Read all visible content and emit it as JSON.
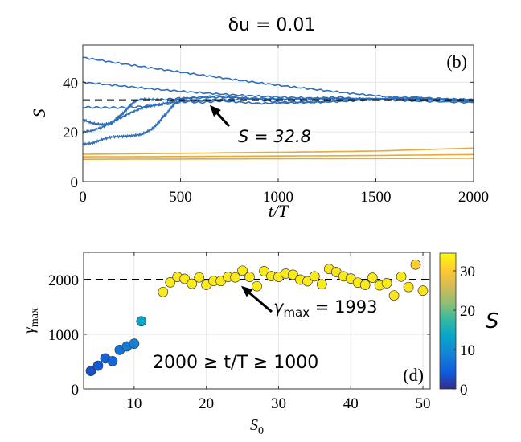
{
  "figure_title": "δu = 0.01",
  "chart_data": [
    {
      "id": "b",
      "type": "line",
      "panel_label": "(b)",
      "title": "δu = 0.01",
      "xlabel": "t/T",
      "ylabel": "S",
      "xlim": [
        0,
        2000
      ],
      "ylim": [
        0,
        55
      ],
      "xticks": [
        0,
        500,
        1000,
        1500,
        2000
      ],
      "yticks": [
        0,
        20,
        40
      ],
      "grid": true,
      "reference_line": {
        "y": 32.8,
        "style": "dashed",
        "color": "#000000"
      },
      "annotation": {
        "text": "S = 32.8",
        "points_to": [
          650,
          31.8
        ]
      },
      "series": [
        {
          "name": "S0=50",
          "color": "#2f6fb9",
          "x": [
            0,
            200,
            400,
            600,
            800,
            1000,
            1200,
            1400,
            1600,
            1800,
            2000
          ],
          "y": [
            50,
            47.5,
            45.2,
            43,
            40.8,
            38.8,
            37,
            35.3,
            34,
            33.4,
            33
          ]
        },
        {
          "name": "S0=40",
          "color": "#2f6fb9",
          "x": [
            0,
            200,
            400,
            600,
            800,
            1000,
            1200,
            1400,
            1600,
            1800,
            2000
          ],
          "y": [
            40,
            38.5,
            37,
            35.8,
            34.8,
            34,
            33.6,
            33.4,
            33.3,
            33.1,
            33
          ]
        },
        {
          "name": "S0=30",
          "color": "#2f6fb9",
          "x": [
            0,
            100,
            200,
            300,
            400,
            500,
            600,
            700,
            800,
            900,
            1000,
            1200,
            1300,
            1400,
            1600,
            1800,
            2000
          ],
          "y": [
            30,
            29.8,
            29.8,
            30.2,
            31,
            32,
            32.6,
            33,
            33.2,
            33.3,
            33.2,
            33.5,
            34,
            33.3,
            33,
            32.8,
            32.5
          ]
        },
        {
          "name": "S0=25",
          "color": "#2f6fb9",
          "x": [
            0,
            50,
            100,
            150,
            180,
            200,
            230,
            260,
            300,
            350,
            400,
            500,
            700,
            900,
            1100,
            1300,
            1500,
            1700,
            2000
          ],
          "y": [
            25,
            23.5,
            23,
            23.5,
            26,
            27,
            29.5,
            32,
            33.2,
            33,
            33,
            33.5,
            34,
            33.5,
            33,
            33.5,
            33.2,
            34,
            32.5
          ]
        },
        {
          "name": "S0=20",
          "color": "#2f6fb9",
          "x": [
            0,
            50,
            100,
            150,
            200,
            250,
            300,
            350,
            400,
            450,
            500,
            700,
            900,
            1000,
            1200,
            1400,
            1700,
            2000
          ],
          "y": [
            20,
            20.5,
            22,
            24,
            26,
            28,
            29.5,
            30.5,
            31.2,
            32,
            33.5,
            34.5,
            33,
            32,
            32,
            33,
            33.5,
            32
          ]
        },
        {
          "name": "S0=15",
          "color": "#2f6fb9",
          "x": [
            0,
            50,
            100,
            150,
            200,
            250,
            300,
            350,
            380,
            410,
            440,
            470,
            500,
            600,
            700,
            900,
            1100,
            1300,
            1500,
            1700,
            2000
          ],
          "y": [
            15,
            15.5,
            17,
            18,
            18.2,
            18.4,
            19,
            21,
            23,
            26,
            28.5,
            31.5,
            32.5,
            31.8,
            32.5,
            31.5,
            31.8,
            32.2,
            33,
            32.5,
            31.8
          ]
        },
        {
          "name": "S0=11",
          "color": "#e6a93a",
          "x": [
            0,
            500,
            1000,
            1500,
            2000
          ],
          "y": [
            11,
            11.4,
            11.8,
            12.3,
            13.5
          ]
        },
        {
          "name": "S0=10",
          "color": "#e6a93a",
          "x": [
            0,
            500,
            1000,
            1500,
            2000
          ],
          "y": [
            10,
            10.1,
            10.3,
            10.5,
            10.9
          ]
        },
        {
          "name": "S0=9",
          "color": "#e6a93a",
          "x": [
            0,
            500,
            1000,
            1500,
            2000
          ],
          "y": [
            9,
            9.1,
            9.2,
            9.3,
            9.4
          ]
        }
      ]
    },
    {
      "id": "d",
      "type": "scatter",
      "panel_label": "(d)",
      "xlabel": "S₀",
      "ylabel": "γmax",
      "xlim": [
        3,
        51
      ],
      "ylim": [
        0,
        2500
      ],
      "xticks": [
        10,
        20,
        30,
        40,
        50
      ],
      "yticks": [
        0,
        1000,
        2000
      ],
      "grid": true,
      "reference_line": {
        "y": 2000,
        "style": "dashed",
        "color": "#000000"
      },
      "annotation": {
        "text_main": "γ",
        "text_sub": "max",
        "text_rest": " = 1993",
        "points_to": [
          24.6,
          1960
        ]
      },
      "range_note": "2000 ≥ t/T ≥ 1000",
      "colorbar": {
        "label": "S",
        "clim": [
          0,
          34.5
        ],
        "ticks": [
          0,
          10,
          20,
          30
        ],
        "colormap": "parula"
      },
      "points": [
        {
          "x": 4,
          "y": 330,
          "c": 3
        },
        {
          "x": 5,
          "y": 425,
          "c": 4
        },
        {
          "x": 6,
          "y": 560,
          "c": 5
        },
        {
          "x": 7,
          "y": 510,
          "c": 5.5
        },
        {
          "x": 8,
          "y": 715,
          "c": 7
        },
        {
          "x": 9,
          "y": 780,
          "c": 8
        },
        {
          "x": 10,
          "y": 830,
          "c": 8.5
        },
        {
          "x": 11,
          "y": 1240,
          "c": 13
        },
        {
          "x": 14,
          "y": 1775,
          "c": 33
        },
        {
          "x": 15,
          "y": 1950,
          "c": 33
        },
        {
          "x": 16,
          "y": 2050,
          "c": 33
        },
        {
          "x": 17,
          "y": 2015,
          "c": 33
        },
        {
          "x": 18,
          "y": 1925,
          "c": 33
        },
        {
          "x": 19,
          "y": 2040,
          "c": 33
        },
        {
          "x": 20,
          "y": 1905,
          "c": 33
        },
        {
          "x": 21,
          "y": 1975,
          "c": 33
        },
        {
          "x": 22,
          "y": 1975,
          "c": 33
        },
        {
          "x": 23,
          "y": 2050,
          "c": 33
        },
        {
          "x": 24,
          "y": 2040,
          "c": 33
        },
        {
          "x": 25,
          "y": 2165,
          "c": 33
        },
        {
          "x": 26,
          "y": 2050,
          "c": 33
        },
        {
          "x": 27,
          "y": 1880,
          "c": 33
        },
        {
          "x": 28,
          "y": 2155,
          "c": 33
        },
        {
          "x": 29,
          "y": 2065,
          "c": 33
        },
        {
          "x": 30,
          "y": 2050,
          "c": 33
        },
        {
          "x": 31,
          "y": 2110,
          "c": 33
        },
        {
          "x": 32,
          "y": 2090,
          "c": 33
        },
        {
          "x": 33,
          "y": 2000,
          "c": 33
        },
        {
          "x": 34,
          "y": 1970,
          "c": 33
        },
        {
          "x": 35,
          "y": 2060,
          "c": 33
        },
        {
          "x": 36,
          "y": 1915,
          "c": 33
        },
        {
          "x": 37,
          "y": 2195,
          "c": 32.5
        },
        {
          "x": 38,
          "y": 2140,
          "c": 32.5
        },
        {
          "x": 39,
          "y": 2060,
          "c": 33
        },
        {
          "x": 40,
          "y": 2020,
          "c": 33
        },
        {
          "x": 41,
          "y": 1945,
          "c": 33
        },
        {
          "x": 42,
          "y": 1905,
          "c": 33
        },
        {
          "x": 43,
          "y": 2035,
          "c": 33
        },
        {
          "x": 44,
          "y": 1895,
          "c": 33
        },
        {
          "x": 45,
          "y": 1935,
          "c": 33
        },
        {
          "x": 46,
          "y": 1710,
          "c": 32.5
        },
        {
          "x": 47,
          "y": 2055,
          "c": 33
        },
        {
          "x": 48,
          "y": 1865,
          "c": 32.5
        },
        {
          "x": 49,
          "y": 2275,
          "c": 30.5
        },
        {
          "x": 50,
          "y": 1800,
          "c": 32.5
        }
      ]
    }
  ]
}
